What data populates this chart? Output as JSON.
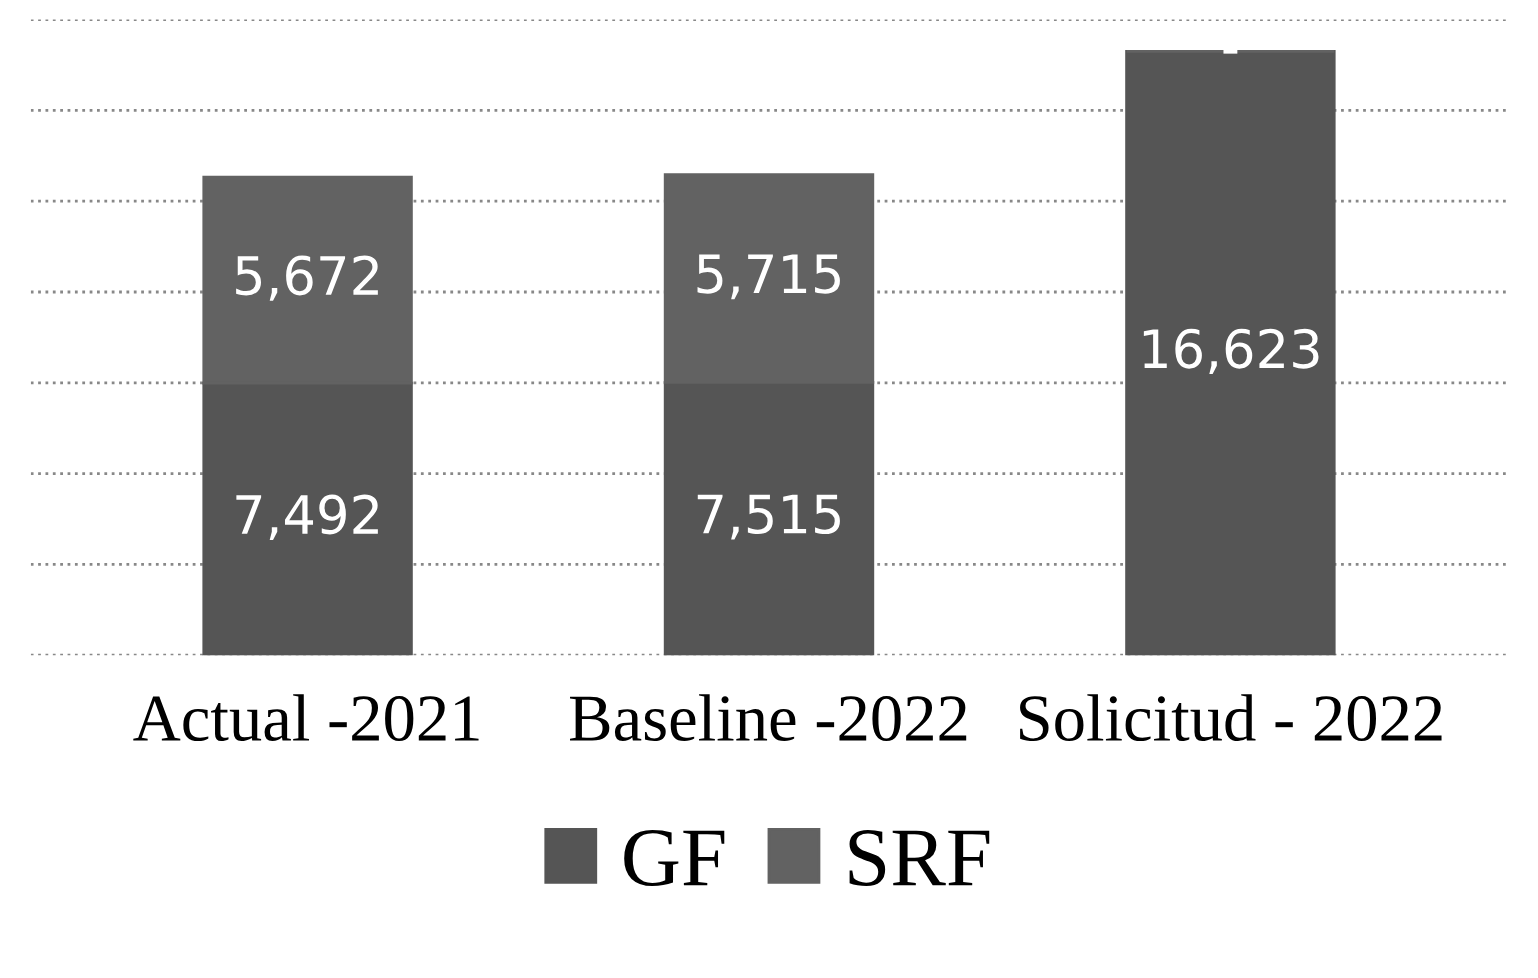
{
  "chart_data": {
    "type": "bar",
    "stacked": true,
    "categories": [
      "Actual -2021",
      "Baseline -2022",
      "Solicitud - 2022"
    ],
    "series": [
      {
        "name": "GF",
        "color": "#555555",
        "values": [
          7492,
          7515,
          16623
        ],
        "value_labels": [
          "7,492",
          "7,515",
          "16,623"
        ]
      },
      {
        "name": "SRF",
        "color": "#626262",
        "values": [
          5672,
          5715,
          0
        ],
        "value_labels": [
          "5,672",
          "5,715",
          "-"
        ]
      }
    ],
    "ylim": [
      0,
      17500
    ],
    "yticks": [
      {
        "value": 0,
        "label": null
      },
      {
        "value": 2500,
        "label": null
      },
      {
        "value": 5000,
        "label": null
      },
      {
        "value": 7500,
        "label": null
      },
      {
        "value": 10000,
        "label": null
      },
      {
        "value": 12500,
        "label": null
      },
      {
        "value": 15000,
        "label": null
      },
      {
        "value": 17500,
        "label": null
      }
    ],
    "grid": "y",
    "legend": "bottom",
    "tick_labels": "x"
  }
}
